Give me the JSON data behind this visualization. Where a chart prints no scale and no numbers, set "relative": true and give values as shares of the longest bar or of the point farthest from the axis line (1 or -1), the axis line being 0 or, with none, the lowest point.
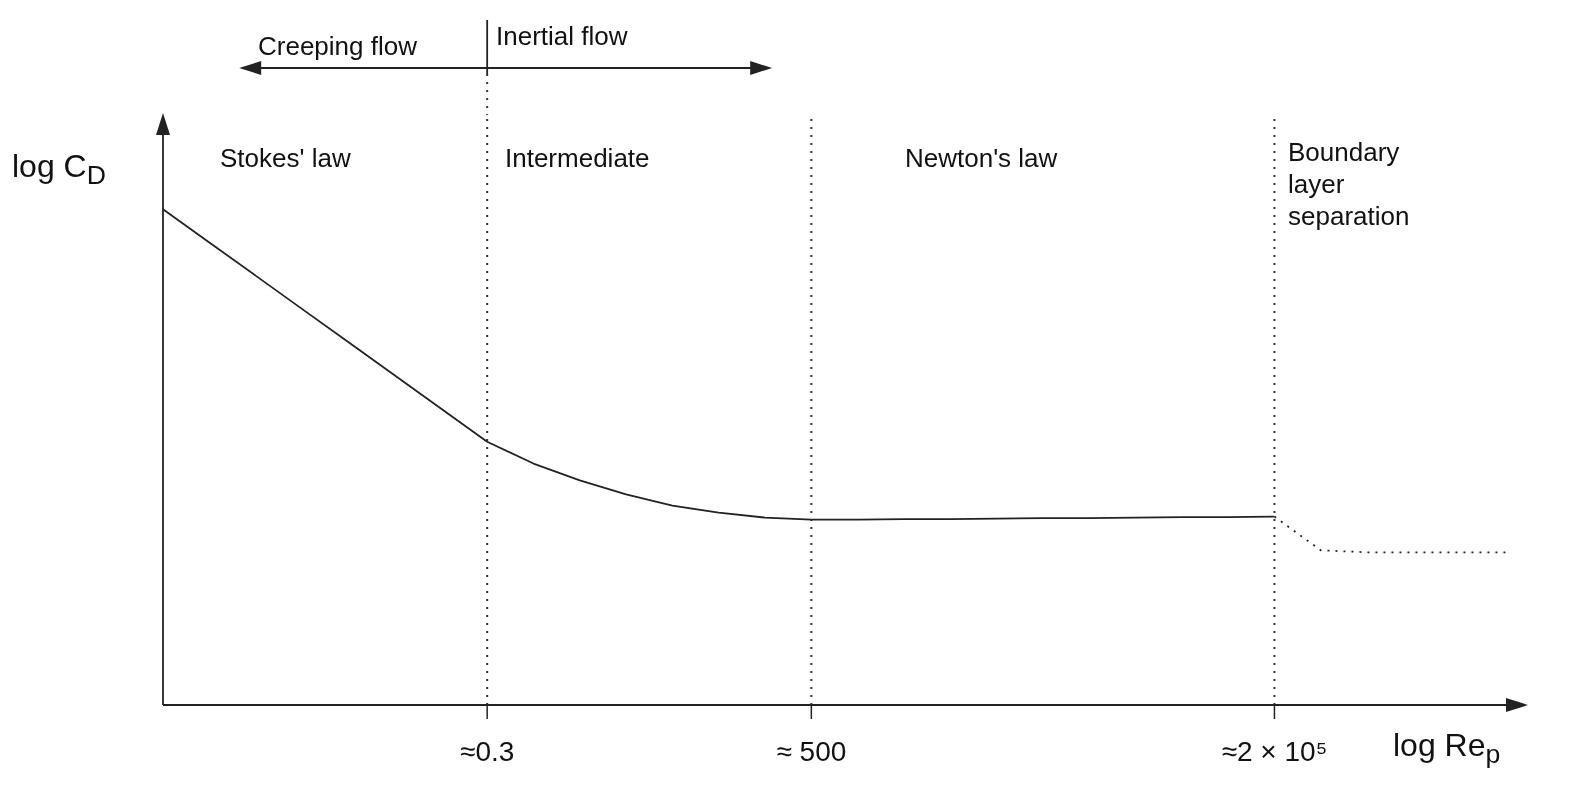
{
  "chart_data": {
    "type": "line",
    "relative": true,
    "ylabel": "log C$_{D}$",
    "xlabel": "log Re$_{p}$",
    "categories": [
      null,
      null,
      null,
      null,
      null,
      null,
      null,
      "≈0.3",
      null,
      null,
      null,
      null,
      null,
      null,
      "≈ 500",
      null,
      null,
      null,
      null,
      null,
      null,
      null,
      null,
      null,
      "≈2 × 10⁵",
      null,
      null,
      null,
      null,
      null
    ],
    "series": [
      {
        "color": "#222222",
        "line_style": "solid",
        "values": [
          1.0,
          0.933,
          0.866,
          0.799,
          0.732,
          0.665,
          0.598,
          0.531,
          0.487,
          0.453,
          0.425,
          0.402,
          0.388,
          0.378,
          0.374,
          0.374,
          0.375,
          0.375,
          0.376,
          0.377,
          0.377,
          0.378,
          0.379,
          0.379,
          0.38,
          null,
          null,
          null,
          null,
          null
        ]
      },
      {
        "color": "#222222",
        "line_style": "dotted",
        "values": [
          null,
          null,
          null,
          null,
          null,
          null,
          null,
          null,
          null,
          null,
          null,
          null,
          null,
          null,
          null,
          null,
          null,
          null,
          null,
          null,
          null,
          null,
          null,
          null,
          0.38,
          0.312,
          0.308,
          0.308,
          0.308,
          0.308
        ]
      }
    ],
    "ref_lines": [
      {
        "axis": "x",
        "value": "≈0.3",
        "line_style": "dotted",
        "color": "#333333"
      },
      {
        "axis": "x",
        "value": "≈ 500",
        "line_style": "dotted",
        "color": "#333333"
      },
      {
        "axis": "x",
        "value": "≈2 × 10⁵",
        "line_style": "dotted",
        "color": "#333333"
      }
    ],
    "annotations": [
      "Creeping flow",
      "Inertial flow",
      "Stokes' law",
      "Intermediate",
      "Newton's law",
      "Boundary layer separation"
    ]
  }
}
